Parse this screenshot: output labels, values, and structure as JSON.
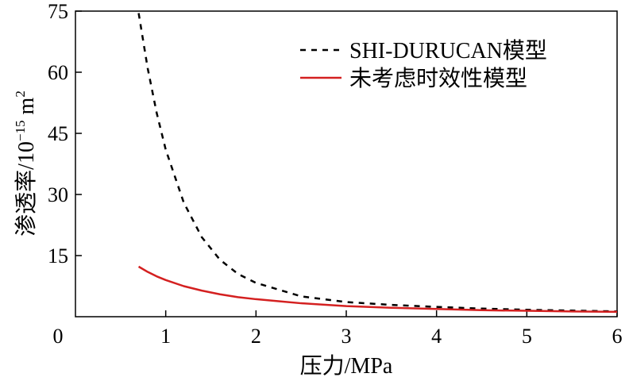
{
  "chart_data": {
    "type": "line",
    "xlabel": "压力/MPa",
    "ylabel_main": "渗透率/10",
    "ylabel_exp": "−15",
    "ylabel_unit": " m",
    "ylabel_unit_exp": "2",
    "origin_label": "0",
    "xlim": [
      0,
      6
    ],
    "ylim": [
      0,
      75
    ],
    "x_ticks": [
      1,
      2,
      3,
      4,
      5,
      6
    ],
    "y_ticks": [
      15,
      30,
      45,
      60,
      75
    ],
    "grid": false,
    "legend_position": "top-right",
    "series": [
      {
        "name": "SHI-DURUCAN模型",
        "style": "dashed",
        "color": "#000000",
        "x": [
          0.7,
          0.8,
          0.9,
          1.0,
          1.2,
          1.4,
          1.6,
          1.8,
          2.0,
          2.5,
          3.0,
          3.5,
          4.0,
          4.5,
          5.0,
          5.5,
          6.0
        ],
        "y": [
          74.5,
          61,
          50,
          41,
          28,
          19.5,
          14,
          10.5,
          8.3,
          5.0,
          3.6,
          2.9,
          2.4,
          2.0,
          1.7,
          1.5,
          1.3
        ]
      },
      {
        "name": "未考虑时效性模型",
        "style": "solid",
        "color": "#d42020",
        "x": [
          0.7,
          0.8,
          0.9,
          1.0,
          1.2,
          1.4,
          1.6,
          1.8,
          2.0,
          2.5,
          3.0,
          3.5,
          4.0,
          4.5,
          5.0,
          5.5,
          6.0
        ],
        "y": [
          12.3,
          11.0,
          9.9,
          9.0,
          7.5,
          6.4,
          5.5,
          4.8,
          4.3,
          3.3,
          2.6,
          2.2,
          1.9,
          1.6,
          1.45,
          1.3,
          1.2
        ]
      }
    ]
  }
}
